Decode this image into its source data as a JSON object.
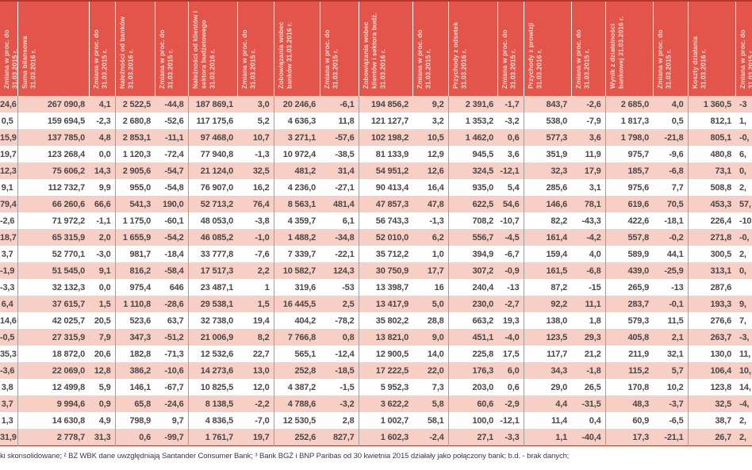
{
  "colors": {
    "header_bg": "#e3554a",
    "header_text": "#f8d7ce",
    "row_pink": "#f8cfc5",
    "row_white": "#ffffff",
    "cell_text": "#4e4546",
    "grid_line": "#9e9e9e",
    "top_rule": "#b5362c"
  },
  "table": {
    "columns": [
      "Zmiana w proc. do 31.03.2015 r.",
      "Suma bilansowa 31.03.2016 r.",
      "Zmiana w proc. do 31.03.2015 r.",
      "Należności od banków 31.03.2016 r.",
      "Zmiana w proc. do 31.03.2015 r.",
      "Należności od klientów i sektora budżetowego 31.03.2016 r.",
      "Zmiana w proc. do 31.03.2015 r.",
      "Zobowiązania wobec banków 31.03.2016 r.",
      "Zmiana w proc. do 31.03.2015 r.",
      "Zobowiązania wobec klientów i sektora budż. 31.03.2016 r.",
      "Zmiana w proc. do 31.03.2015 r.",
      "Przychody z odsetek 31.03.2016 r.",
      "Zmiana w proc. do 31.03.2015 r.",
      "Przychody z prowizji 31.03.2016 r.",
      "Zmiana w proc. do 31.03.2015 r.",
      "Wynik z działalności bankowej 31.03.2016 r.",
      "Zmiana w proc. do 31.03.2015 r.",
      "Koszty działania 31.03.2016 r.",
      "Zmiana w proc. do 31.03.2015 r."
    ],
    "rows": [
      [
        "24,6",
        "267 090,8",
        "4,1",
        "2 522,5",
        "-44,8",
        "187 869,1",
        "3,0",
        "20 246,6",
        "-6,1",
        "194 856,2",
        "9,2",
        "2 391,6",
        "-1,7",
        "843,7",
        "-2,6",
        "2 685,0",
        "4,0",
        "1 360,5",
        "-3"
      ],
      [
        "0,5",
        "159 694,5",
        "-2,3",
        "2 680,8",
        "-52,6",
        "117 175,6",
        "5,2",
        "4 636,3",
        "11,8",
        "121 127,7",
        "3,2",
        "1 353,2",
        "-3,2",
        "538,0",
        "-7,9",
        "1 817,3",
        "0,5",
        "812,1",
        "1,"
      ],
      [
        "15,9",
        "137 785,0",
        "4,8",
        "2 853,1",
        "-11,1",
        "97 468,0",
        "10,7",
        "3 271,1",
        "-57,6",
        "102 198,2",
        "10,5",
        "1 462,0",
        "0,6",
        "577,3",
        "3,6",
        "1 798,0",
        "-21,8",
        "805,1",
        "-0,"
      ],
      [
        "19,7",
        "123 268,4",
        "0,0",
        "1 120,3",
        "-72,4",
        "77 940,8",
        "-1,3",
        "10 972,4",
        "-38,5",
        "81 133,9",
        "12,9",
        "945,5",
        "3,6",
        "351,9",
        "11,9",
        "975,7",
        "-9,6",
        "480,8",
        "6,"
      ],
      [
        "12,3",
        "75 606,2",
        "14,3",
        "2 905,6",
        "-54,7",
        "21 124,0",
        "32,5",
        "481,2",
        "31,4",
        "54 951,2",
        "12,6",
        "324,5",
        "-12,1",
        "32,3",
        "17,9",
        "185,7",
        "-6,8",
        "73,1",
        "0,"
      ],
      [
        "9,1",
        "112 732,7",
        "9,9",
        "955,0",
        "-54,8",
        "76 907,0",
        "16,2",
        "4 236,0",
        "-27,1",
        "90 413,4",
        "16,4",
        "935,0",
        "5,4",
        "285,6",
        "3,1",
        "975,6",
        "7,7",
        "508,8",
        "2,"
      ],
      [
        "79,4",
        "66 260,6",
        "66,6",
        "541,3",
        "190,0",
        "52 713,2",
        "76,4",
        "8 563,1",
        "481,4",
        "47 857,3",
        "47,8",
        "622,5",
        "54,6",
        "146,6",
        "78,1",
        "619,6",
        "70,5",
        "453,3",
        "57,"
      ],
      [
        "-2,6",
        "71 972,2",
        "-1,1",
        "1 175,0",
        "-60,1",
        "48 053,0",
        "-3,8",
        "4 359,7",
        "6,1",
        "56 743,3",
        "-1,3",
        "708,2",
        "-10,7",
        "82,2",
        "-43,3",
        "422,6",
        "-18,1",
        "226,4",
        "-10,"
      ],
      [
        "18,7",
        "65 315,9",
        "2,0",
        "1 655,9",
        "-54,2",
        "46 085,2",
        "-1,0",
        "1 488,2",
        "-34,8",
        "52 010,0",
        "6,2",
        "556,7",
        "-4,5",
        "161,4",
        "-4,2",
        "557,8",
        "-0,2",
        "271,8",
        "-0,"
      ],
      [
        "3,7",
        "52 770,1",
        "-3,0",
        "981,7",
        "-18,4",
        "33 777,8",
        "-7,6",
        "7 339,7",
        "-22,1",
        "35 712,2",
        "1,0",
        "394,9",
        "-6,7",
        "159,4",
        "4,0",
        "589,9",
        "44,1",
        "300,5",
        "2,"
      ],
      [
        "-1,9",
        "51 545,0",
        "9,1",
        "816,2",
        "-58,4",
        "17 517,3",
        "2,2",
        "10 582,7",
        "124,3",
        "30 750,9",
        "17,7",
        "307,2",
        "-0,9",
        "161,5",
        "-6,8",
        "439,0",
        "-25,9",
        "313,1",
        "0,"
      ],
      [
        "-3,3",
        "32 132,3",
        "0,0",
        "975,4",
        "646",
        "23 487,1",
        "1",
        "319,6",
        "-53",
        "13 398,7",
        "16",
        "240,4",
        "-13",
        "87,2",
        "-15",
        "265,9",
        "-13",
        "287,6",
        ""
      ],
      [
        "6,4",
        "37 615,7",
        "1,5",
        "1 110,8",
        "-28,6",
        "29 538,1",
        "1,5",
        "16 445,5",
        "2,5",
        "13 417,9",
        "5,0",
        "230,0",
        "-2,7",
        "92,2",
        "11,1",
        "283,7",
        "-0,1",
        "193,3",
        "9,"
      ],
      [
        "14,6",
        "42 025,7",
        "20,5",
        "523,6",
        "63,7",
        "32 738,0",
        "19,4",
        "404,2",
        "-78,2",
        "35 802,2",
        "28,8",
        "663,2",
        "19,3",
        "138,0",
        "1,8",
        "579,3",
        "11,5",
        "276,6",
        "7,"
      ],
      [
        "-0,5",
        "27 315,9",
        "7,9",
        "347,3",
        "-51,2",
        "21 006,9",
        "8,2",
        "7 766,8",
        "0,8",
        "13 821,0",
        "9,0",
        "451,1",
        "-4,0",
        "123,5",
        "29,3",
        "405,8",
        "2,1",
        "263,7",
        "-3,"
      ],
      [
        "35,3",
        "18 872,0",
        "20,6",
        "182,8",
        "-71,3",
        "12 532,6",
        "22,7",
        "565,1",
        "-12,4",
        "12 900,5",
        "14,0",
        "225,8",
        "17,5",
        "117,7",
        "21,2",
        "211,9",
        "32,1",
        "130,0",
        "11,"
      ],
      [
        "-3,6",
        "22 069,0",
        "12,8",
        "386,2",
        "-10,6",
        "14 273,6",
        "13,0",
        "252,8",
        "-18,5",
        "17 222,5",
        "22,0",
        "176,3",
        "6,0",
        "34,3",
        "-1,8",
        "115,2",
        "5,7",
        "106,4",
        "10,"
      ],
      [
        "3,8",
        "12 499,8",
        "5,9",
        "146,1",
        "-67,7",
        "10 825,5",
        "12,0",
        "4 387,2",
        "-1,5",
        "5 952,3",
        "7,3",
        "203,0",
        "0,6",
        "29,0",
        "26,5",
        "170,8",
        "10,2",
        "123,8",
        "14,"
      ],
      [
        "3,7",
        "9 994,6",
        "0,9",
        "65,8",
        "-24,6",
        "8 138,5",
        "-2,2",
        "4 788,6",
        "-3,2",
        "3 622,2",
        "5,8",
        "60,6",
        "-2,9",
        "4,4",
        "-31,5",
        "48,3",
        "-3,7",
        "32,5",
        "-4,"
      ],
      [
        "1,3",
        "14 630,8",
        "4,9",
        "798,9",
        "9,7",
        "4 836,5",
        "-7,0",
        "12 530,5",
        "2,8",
        "1 002,7",
        "58,1",
        "100,0",
        "-12,1",
        "11,4",
        "0,4",
        "60,9",
        "-6,5",
        "38,7",
        "2,"
      ],
      [
        "31,9",
        "2 778,7",
        "31,3",
        "0,6",
        "-99,7",
        "1 761,7",
        "19,7",
        "252,6",
        "827,7",
        "1 602,3",
        "-2,4",
        "27,1",
        "-3,3",
        "1,1",
        "-40,4",
        "17,3",
        "-21,1",
        "26,7",
        "2,"
      ]
    ]
  },
  "footer": {
    "note": "ki skonsolidowane;  ² BZ WBK dane uwzględniają Santander Consumer Bank;  ³ Bank BGŻ i BNP Paribas od 30 kwietnia 2015 działały jako połączony bank;  b.d. - brak danych;"
  }
}
